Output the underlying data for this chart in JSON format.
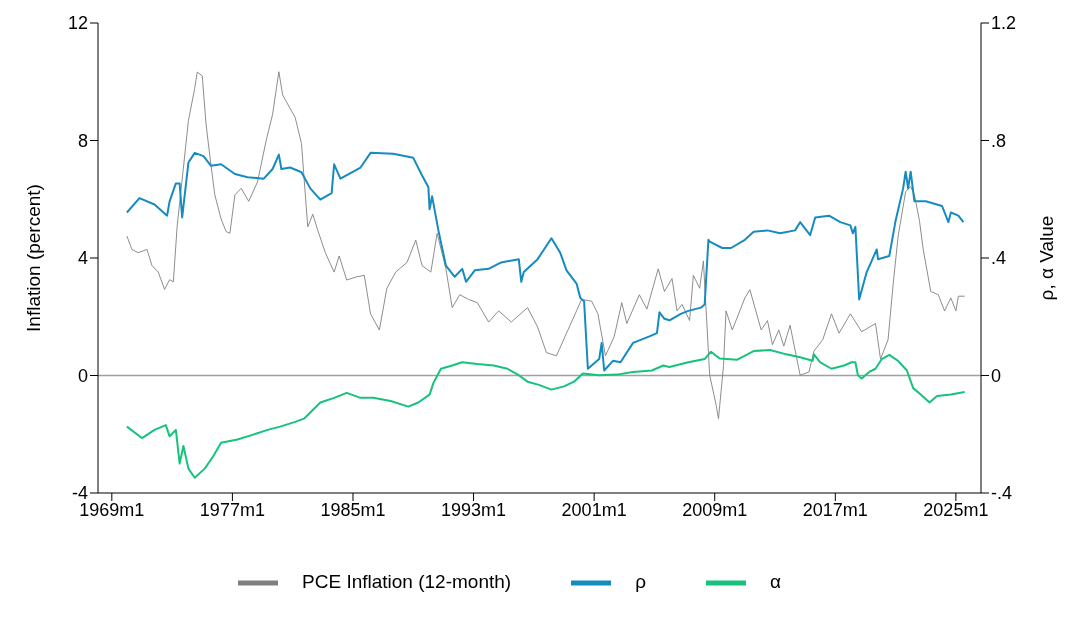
{
  "chart_data": {
    "type": "line",
    "ylabel": "Inflation (percent)",
    "y2label": "ρ, α Value",
    "ylim": [
      -4,
      12
    ],
    "yticks": [
      -4,
      0,
      4,
      8,
      12
    ],
    "y2lim": [
      -0.4,
      1.2
    ],
    "y2ticks": [
      {
        "value": -0.4,
        "label": "-.4"
      },
      0,
      {
        "value": 0.4,
        "label": ".4"
      },
      {
        "value": 0.8,
        "label": ".8"
      },
      1.2
    ],
    "xlim": [
      "1968-02",
      "2026-09"
    ],
    "xticks": [
      {
        "value": "1969-01",
        "label": "1969m1"
      },
      {
        "value": "1977-01",
        "label": "1977m1"
      },
      {
        "value": "1985-01",
        "label": "1985m1"
      },
      {
        "value": "1993-01",
        "label": "1993m1"
      },
      {
        "value": "2001-01",
        "label": "2001m1"
      },
      {
        "value": "2009-01",
        "label": "2009m1"
      },
      {
        "value": "2017-01",
        "label": "2017m1"
      },
      {
        "value": "2025-01",
        "label": "2025m1"
      }
    ],
    "legend": "bottom",
    "marker": "none",
    "line_style": "solid",
    "ref_lines": [
      {
        "axis": "y",
        "value": 0,
        "color": "#a0a0a0"
      }
    ],
    "series": [
      {
        "name": "PCE Inflation (12-month)",
        "color": "#808080",
        "x": [
          "1970-01",
          "1970-05",
          "1970-10",
          "1971-05",
          "1971-09",
          "1972-02",
          "1972-07",
          "1972-11",
          "1973-02",
          "1973-05",
          "1974-02",
          "1974-07",
          "1974-09",
          "1975-01",
          "1975-04",
          "1975-08",
          "1975-11",
          "1976-04",
          "1976-08",
          "1976-11",
          "1977-03",
          "1977-08",
          "1978-02",
          "1978-09",
          "1979-04",
          "1979-09",
          "1980-02",
          "1980-05",
          "1981-03",
          "1981-08",
          "1982-01",
          "1982-05",
          "1982-09",
          "1983-03",
          "1983-10",
          "1984-02",
          "1984-08",
          "1985-04",
          "1985-10",
          "1986-03",
          "1986-10",
          "1987-04",
          "1987-11",
          "1988-08",
          "1989-03",
          "1989-08",
          "1990-03",
          "1990-08",
          "1991-03",
          "1991-08",
          "1992-02",
          "1992-09",
          "1993-04",
          "1994-01",
          "1994-09",
          "1995-07",
          "1996-08",
          "1997-04",
          "1997-11",
          "1998-07",
          "1999-03",
          "1999-11",
          "2000-03",
          "2000-11",
          "2001-04",
          "2001-10",
          "2002-05",
          "2002-11",
          "2003-03",
          "2004-01",
          "2004-07",
          "2005-04",
          "2005-09",
          "2006-03",
          "2006-07",
          "2006-11",
          "2007-05",
          "2007-08",
          "2008-01",
          "2008-04",
          "2008-09",
          "2009-02",
          "2009-04",
          "2009-08",
          "2009-10",
          "2010-03",
          "2011-01",
          "2011-05",
          "2012-02",
          "2012-07",
          "2012-11",
          "2013-04",
          "2013-08",
          "2014-01",
          "2014-09",
          "2015-04",
          "2015-08",
          "2016-03",
          "2016-10",
          "2017-04",
          "2018-01",
          "2018-10",
          "2019-09",
          "2020-01",
          "2020-07",
          "2020-11",
          "2021-03",
          "2021-09",
          "2022-01",
          "2022-04",
          "2022-08",
          "2022-11",
          "2023-05",
          "2023-11",
          "2024-04",
          "2024-09",
          "2025-01",
          "2025-03",
          "2025-08"
        ],
        "values": [
          4.75,
          4.29,
          4.18,
          4.29,
          3.74,
          3.52,
          2.93,
          3.26,
          3.19,
          5.07,
          8.68,
          9.77,
          10.33,
          10.2,
          8.56,
          7.14,
          6.15,
          5.33,
          4.9,
          4.84,
          6.15,
          6.37,
          5.93,
          6.59,
          8.02,
          8.89,
          10.34,
          9.55,
          8.78,
          7.9,
          5.06,
          5.49,
          4.94,
          4.18,
          3.52,
          4.07,
          3.25,
          3.36,
          3.41,
          2.1,
          1.55,
          2.97,
          3.52,
          3.85,
          4.61,
          3.74,
          3.52,
          4.84,
          3.63,
          2.31,
          2.75,
          2.59,
          2.48,
          1.82,
          2.2,
          1.82,
          2.31,
          1.65,
          0.78,
          0.67,
          1.44,
          2.2,
          2.59,
          2.53,
          2.1,
          0.67,
          1.33,
          2.48,
          1.77,
          2.75,
          2.26,
          3.63,
          2.86,
          3.3,
          2.2,
          2.42,
          1.87,
          3.41,
          2.97,
          3.9,
          0.01,
          -0.98,
          -1.47,
          0.34,
          2.2,
          1.55,
          2.64,
          2.92,
          1.55,
          1.87,
          1.05,
          1.55,
          1.0,
          1.71,
          0.01,
          0.12,
          0.83,
          1.22,
          2.1,
          1.44,
          2.1,
          1.49,
          1.77,
          0.56,
          1.22,
          3.08,
          4.73,
          6.26,
          6.43,
          6.15,
          5.27,
          4.29,
          2.86,
          2.75,
          2.2,
          2.64,
          2.2,
          2.7,
          2.7
        ]
      },
      {
        "name": "ρ",
        "color": "#168bc0",
        "axis": "y2",
        "x": [
          "1970-01",
          "1970-11",
          "1971-11",
          "1972-09",
          "1972-11",
          "1973-04",
          "1973-07",
          "1973-09",
          "1974-02",
          "1974-07",
          "1975-02",
          "1975-08",
          "1976-04",
          "1977-03",
          "1978-01",
          "1979-02",
          "1979-09",
          "1980-02",
          "1980-04",
          "1980-11",
          "1981-08",
          "1982-03",
          "1982-11",
          "1983-08",
          "1983-10",
          "1984-03",
          "1985-07",
          "1986-03",
          "1987-09",
          "1989-01",
          "1989-08",
          "1990-01",
          "1990-02",
          "1990-04",
          "1990-09",
          "1991-03",
          "1991-10",
          "1992-04",
          "1992-07",
          "1993-02",
          "1994-01",
          "1994-11",
          "1996-01",
          "1996-03",
          "1996-05",
          "1997-04",
          "1998-03",
          "1998-10",
          "1999-03",
          "1999-11",
          "2000-02",
          "2000-05",
          "2000-08",
          "2001-05",
          "2001-07",
          "2001-09",
          "2002-04",
          "2002-10",
          "2003-08",
          "2004-09",
          "2005-03",
          "2005-05",
          "2005-09",
          "2006-01",
          "2006-10",
          "2007-04",
          "2008-02",
          "2008-05",
          "2008-08",
          "2008-09",
          "2009-07",
          "2010-02",
          "2011-01",
          "2011-08",
          "2012-07",
          "2013-05",
          "2014-05",
          "2014-09",
          "2015-05",
          "2015-09",
          "2016-08",
          "2017-05",
          "2018-01",
          "2018-03",
          "2018-05",
          "2018-08",
          "2019-02",
          "2019-10",
          "2019-11",
          "2020-08",
          "2021-01",
          "2021-07",
          "2021-09",
          "2021-11",
          "2022-01",
          "2022-04",
          "2023-01",
          "2024-02",
          "2024-07",
          "2024-09",
          "2025-03",
          "2025-07"
        ],
        "values": [
          0.555,
          0.604,
          0.582,
          0.544,
          0.593,
          0.654,
          0.654,
          0.538,
          0.725,
          0.758,
          0.747,
          0.714,
          0.719,
          0.686,
          0.675,
          0.67,
          0.703,
          0.752,
          0.703,
          0.708,
          0.692,
          0.637,
          0.599,
          0.621,
          0.719,
          0.67,
          0.708,
          0.758,
          0.755,
          0.741,
          0.681,
          0.642,
          0.566,
          0.61,
          0.494,
          0.374,
          0.336,
          0.363,
          0.319,
          0.358,
          0.363,
          0.385,
          0.396,
          0.319,
          0.352,
          0.396,
          0.467,
          0.418,
          0.358,
          0.313,
          0.264,
          0.253,
          0.023,
          0.056,
          0.111,
          0.017,
          0.05,
          0.045,
          0.111,
          0.133,
          0.144,
          0.215,
          0.193,
          0.188,
          0.21,
          0.22,
          0.231,
          0.242,
          0.462,
          0.456,
          0.434,
          0.434,
          0.462,
          0.489,
          0.494,
          0.484,
          0.494,
          0.522,
          0.478,
          0.538,
          0.544,
          0.522,
          0.511,
          0.484,
          0.506,
          0.259,
          0.352,
          0.429,
          0.396,
          0.407,
          0.527,
          0.637,
          0.694,
          0.637,
          0.694,
          0.593,
          0.593,
          0.577,
          0.522,
          0.555,
          0.544,
          0.522
        ]
      },
      {
        "name": "α",
        "color": "#17c27d",
        "axis": "y2",
        "x": [
          "1970-01",
          "1971-01",
          "1971-11",
          "1972-08",
          "1972-11",
          "1973-04",
          "1973-07",
          "1973-10",
          "1974-02",
          "1974-07",
          "1975-03",
          "1975-10",
          "1976-04",
          "1977-05",
          "1978-05",
          "1979-05",
          "1980-03",
          "1981-03",
          "1981-10",
          "1982-07",
          "1982-11",
          "1983-10",
          "1984-08",
          "1985-07",
          "1986-05",
          "1987-07",
          "1988-09",
          "1989-05",
          "1990-02",
          "1990-05",
          "1990-11",
          "1991-08",
          "1992-04",
          "1993-04",
          "1994-05",
          "1995-04",
          "1996-01",
          "1996-08",
          "1997-05",
          "1998-03",
          "1999-01",
          "1999-09",
          "2000-04",
          "2001-05",
          "2002-07",
          "2003-08",
          "2004-11",
          "2005-08",
          "2006-01",
          "2007-04",
          "2008-05",
          "2008-10",
          "2009-05",
          "2010-07",
          "2011-08",
          "2012-09",
          "2013-10",
          "2014-09",
          "2015-07",
          "2015-08",
          "2016-01",
          "2016-10",
          "2017-08",
          "2018-02",
          "2018-05",
          "2018-07",
          "2018-10",
          "2019-04",
          "2019-09",
          "2020-02",
          "2020-08",
          "2021-03",
          "2021-10",
          "2022-03",
          "2022-09",
          "2023-04",
          "2023-10",
          "2024-09",
          "2025-08"
        ],
        "values": [
          -0.174,
          -0.213,
          -0.185,
          -0.169,
          -0.207,
          -0.185,
          -0.3,
          -0.24,
          -0.317,
          -0.348,
          -0.317,
          -0.273,
          -0.229,
          -0.218,
          -0.202,
          -0.185,
          -0.174,
          -0.158,
          -0.147,
          -0.109,
          -0.092,
          -0.076,
          -0.059,
          -0.076,
          -0.076,
          -0.087,
          -0.106,
          -0.092,
          -0.065,
          -0.026,
          0.023,
          0.034,
          0.045,
          0.039,
          0.034,
          0.023,
          0.001,
          -0.021,
          -0.032,
          -0.048,
          -0.037,
          -0.021,
          0.007,
          0.001,
          0.003,
          0.012,
          0.017,
          0.034,
          0.029,
          0.045,
          0.056,
          0.081,
          0.058,
          0.054,
          0.083,
          0.087,
          0.072,
          0.062,
          0.05,
          0.072,
          0.045,
          0.023,
          0.034,
          0.045,
          0.045,
          0.001,
          -0.01,
          0.012,
          0.023,
          0.056,
          0.07,
          0.05,
          0.017,
          -0.043,
          -0.065,
          -0.092,
          -0.07,
          -0.065,
          -0.056
        ]
      }
    ]
  }
}
